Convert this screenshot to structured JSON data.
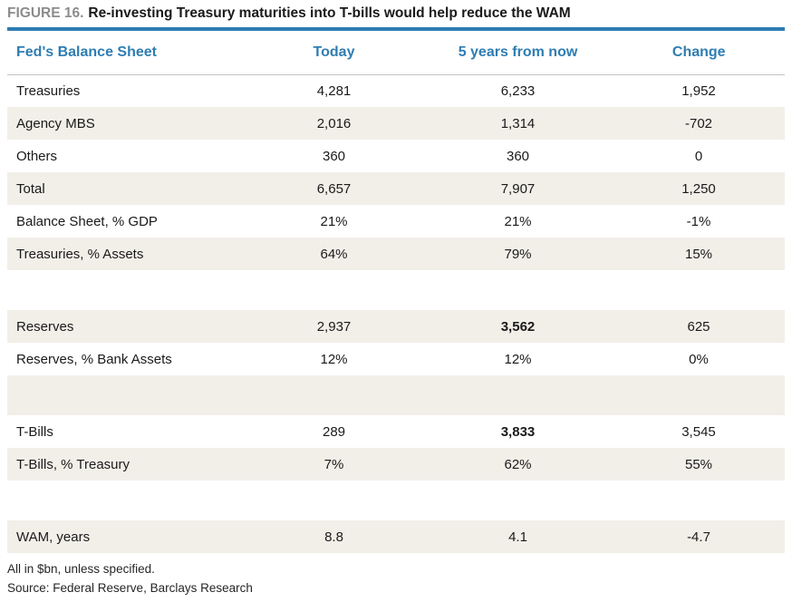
{
  "figure": {
    "label": "FIGURE 16.",
    "title": "Re-investing Treasury maturities into T-bills would help reduce the WAM"
  },
  "table": {
    "columns": [
      "Fed's Balance Sheet",
      "Today",
      "5 years from now",
      "Change"
    ],
    "rows": [
      {
        "label": "Treasuries",
        "today": "4,281",
        "future": "6,233",
        "change": "1,952"
      },
      {
        "label": "Agency MBS",
        "today": "2,016",
        "future": "1,314",
        "change": "-702"
      },
      {
        "label": "Others",
        "today": "360",
        "future": "360",
        "change": "0"
      },
      {
        "label": "Total",
        "today": "6,657",
        "future": "7,907",
        "change": "1,250"
      },
      {
        "label": "Balance Sheet, % GDP",
        "today": "21%",
        "future": "21%",
        "change": "-1%"
      },
      {
        "label": "Treasuries, % Assets",
        "today": "64%",
        "future": "79%",
        "change": "15%"
      },
      {
        "blank": true
      },
      {
        "label": "Reserves",
        "today": "2,937",
        "future": "3,562",
        "change": "625",
        "bold": [
          "future"
        ]
      },
      {
        "label": "Reserves, % Bank Assets",
        "today": "12%",
        "future": "12%",
        "change": "0%"
      },
      {
        "blank": true
      },
      {
        "label": "T-Bills",
        "today": "289",
        "future": "3,833",
        "change": "3,545",
        "bold": [
          "future"
        ]
      },
      {
        "label": "T-Bills, % Treasury",
        "today": "7%",
        "future": "62%",
        "change": "55%"
      },
      {
        "blank": true
      },
      {
        "label": "WAM, years",
        "today": "8.8",
        "future": "4.1",
        "change": "-4.7"
      }
    ]
  },
  "footnotes": [
    "All in $bn, unless specified.",
    "Source: Federal Reserve, Barclays Research"
  ],
  "chart_data": {
    "type": "table",
    "title": "Re-investing Treasury maturities into T-bills would help reduce the WAM",
    "columns": [
      "Fed's Balance Sheet",
      "Today",
      "5 years from now",
      "Change"
    ],
    "rows": [
      [
        "Treasuries",
        4281,
        6233,
        1952
      ],
      [
        "Agency MBS",
        2016,
        1314,
        -702
      ],
      [
        "Others",
        360,
        360,
        0
      ],
      [
        "Total",
        6657,
        7907,
        1250
      ],
      [
        "Balance Sheet, % GDP",
        "21%",
        "21%",
        "-1%"
      ],
      [
        "Treasuries, % Assets",
        "64%",
        "79%",
        "15%"
      ],
      [
        "Reserves",
        2937,
        3562,
        625
      ],
      [
        "Reserves, % Bank Assets",
        "12%",
        "12%",
        "0%"
      ],
      [
        "T-Bills",
        289,
        3833,
        3545
      ],
      [
        "T-Bills, % Treasury",
        "7%",
        "62%",
        "55%"
      ],
      [
        "WAM, years",
        8.8,
        4.1,
        -4.7
      ]
    ],
    "units": "$bn unless specified"
  },
  "colors": {
    "accent_blue": "#2e7db2",
    "row_stripe": "#f2efe9",
    "figure_label_gray": "#8c8c8c",
    "header_rule_gray": "#c3c3c3",
    "text": "#1a1a1a"
  }
}
